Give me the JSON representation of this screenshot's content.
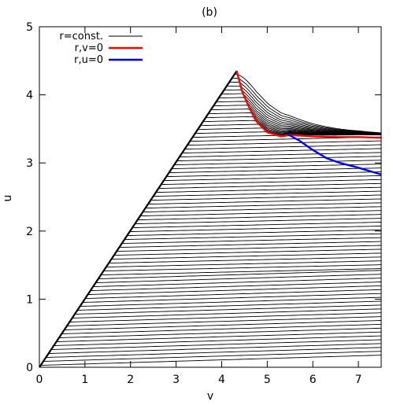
{
  "chart_data": {
    "type": "line",
    "title": "(b)",
    "xlabel": "v",
    "ylabel": "u",
    "xlim": [
      0,
      7.5
    ],
    "ylim": [
      0,
      5
    ],
    "x_ticks": [
      "0",
      "1",
      "2",
      "3",
      "4",
      "5",
      "6",
      "7"
    ],
    "y_ticks": [
      "0",
      "1",
      "2",
      "3",
      "4",
      "5"
    ],
    "grid": false,
    "legend_position": "top-left",
    "legend": [
      {
        "label": "r=const.",
        "color": "#000000"
      },
      {
        "label": "r,v=0",
        "color": "#ff0000"
      },
      {
        "label": "r,u=0",
        "color": "#0000ff"
      }
    ],
    "apex": {
      "v": 4.33,
      "u": 4.35
    },
    "series": [
      {
        "name": "r=const.",
        "color": "#000000",
        "description_count": 75
      },
      {
        "name": "r,v=0",
        "color": "#ff0000",
        "points": [
          [
            4.33,
            4.35
          ],
          [
            4.45,
            4.05
          ],
          [
            4.6,
            3.82
          ],
          [
            4.75,
            3.62
          ],
          [
            5.0,
            3.45
          ],
          [
            5.3,
            3.39
          ],
          [
            5.5,
            3.41
          ],
          [
            6.0,
            3.39
          ],
          [
            6.5,
            3.38
          ],
          [
            7.0,
            3.38
          ],
          [
            7.5,
            3.37
          ]
        ]
      },
      {
        "name": "r,u=0",
        "color": "#0000ff",
        "points": [
          [
            5.45,
            3.42
          ],
          [
            5.7,
            3.33
          ],
          [
            6.0,
            3.19
          ],
          [
            6.3,
            3.07
          ],
          [
            6.6,
            3.0
          ],
          [
            7.0,
            2.93
          ],
          [
            7.5,
            2.83
          ]
        ]
      }
    ]
  }
}
